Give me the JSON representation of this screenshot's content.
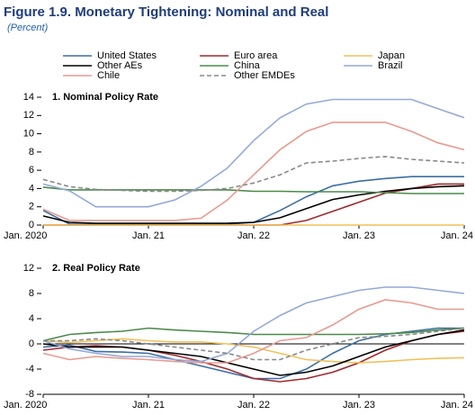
{
  "title": "Figure 1.9.  Monetary Tightening: Nominal and Real",
  "subtitle": "(Percent)",
  "chart_data": [
    {
      "type": "line",
      "title": "1. Nominal Policy Rate",
      "x": [
        2020,
        2020.25,
        2020.5,
        2020.75,
        2021,
        2021.25,
        2021.5,
        2021.75,
        2022,
        2022.25,
        2022.5,
        2022.75,
        2023,
        2023.25,
        2023.5,
        2023.75,
        2024
      ],
      "xlim": [
        2020,
        2024
      ],
      "xticks": [
        {
          "value": 2020,
          "label": "Jan. 2020"
        },
        {
          "value": 2021,
          "label": "Jan. 21"
        },
        {
          "value": 2022,
          "label": "Jan. 22"
        },
        {
          "value": 2023,
          "label": "Jan. 23"
        },
        {
          "value": 2024,
          "label": "Jan. 24"
        }
      ],
      "ylim": [
        0,
        14
      ],
      "yticks": [
        0,
        2,
        4,
        6,
        8,
        10,
        12,
        14
      ],
      "grid": false,
      "series": [
        {
          "name": "United States",
          "color": "#3a6ea5",
          "values": [
            1.6,
            0.1,
            0.1,
            0.1,
            0.1,
            0.1,
            0.1,
            0.1,
            0.3,
            1.6,
            3.1,
            4.3,
            4.8,
            5.1,
            5.3,
            5.3,
            5.3
          ]
        },
        {
          "name": "Euro area",
          "color": "#a0282d",
          "values": [
            0,
            0,
            0,
            0,
            0,
            0,
            0,
            0,
            0,
            0,
            0.5,
            1.5,
            2.5,
            3.5,
            4.0,
            4.5,
            4.5
          ]
        },
        {
          "name": "Japan",
          "color": "#f0c05a",
          "values": [
            0,
            0,
            0,
            0,
            0,
            0,
            0,
            0,
            0,
            0,
            0,
            0,
            0,
            0,
            0,
            0,
            0
          ]
        },
        {
          "name": "Other AEs",
          "color": "#000000",
          "values": [
            1.0,
            0.3,
            0.2,
            0.2,
            0.2,
            0.2,
            0.2,
            0.2,
            0.3,
            0.8,
            1.8,
            2.8,
            3.3,
            3.7,
            4.0,
            4.2,
            4.3
          ]
        },
        {
          "name": "China",
          "color": "#4a8a4a",
          "values": [
            4.15,
            3.85,
            3.85,
            3.85,
            3.85,
            3.85,
            3.85,
            3.85,
            3.7,
            3.7,
            3.65,
            3.65,
            3.65,
            3.55,
            3.45,
            3.45,
            3.45
          ]
        },
        {
          "name": "Brazil",
          "color": "#94a9d8",
          "values": [
            4.5,
            3.75,
            2.0,
            2.0,
            2.0,
            2.75,
            4.25,
            6.25,
            9.25,
            11.75,
            13.25,
            13.75,
            13.75,
            13.75,
            13.75,
            12.75,
            11.75
          ]
        },
        {
          "name": "Chile",
          "color": "#e89a8f",
          "values": [
            1.75,
            0.5,
            0.5,
            0.5,
            0.5,
            0.5,
            0.75,
            2.75,
            5.5,
            8.25,
            10.25,
            11.25,
            11.25,
            11.25,
            10.25,
            9.0,
            8.25
          ]
        },
        {
          "name": "Other EMDEs",
          "color": "#888888",
          "style": "dashed",
          "values": [
            5.0,
            4.2,
            3.9,
            3.8,
            3.7,
            3.7,
            3.8,
            4.0,
            4.6,
            5.5,
            6.8,
            7.0,
            7.3,
            7.5,
            7.2,
            7.0,
            6.8
          ]
        }
      ]
    },
    {
      "type": "line",
      "title": "2. Real Policy Rate",
      "x": [
        2020,
        2020.25,
        2020.5,
        2020.75,
        2021,
        2021.25,
        2021.5,
        2021.75,
        2022,
        2022.25,
        2022.5,
        2022.75,
        2023,
        2023.25,
        2023.5,
        2023.75,
        2024
      ],
      "xlim": [
        2020,
        2024
      ],
      "xticks": [
        {
          "value": 2020,
          "label": "Jan. 2020"
        },
        {
          "value": 2021,
          "label": "Jan. 21"
        },
        {
          "value": 2022,
          "label": "Jan. 22"
        },
        {
          "value": 2023,
          "label": "Jan. 23"
        },
        {
          "value": 2024,
          "label": "Jan. 24"
        }
      ],
      "ylim": [
        -8,
        12
      ],
      "yticks": [
        -8,
        -4,
        0,
        4,
        8,
        12
      ],
      "grid": false,
      "series": [
        {
          "color": "#3a6ea5",
          "values": [
            -0.5,
            -0.2,
            -1.2,
            -1.3,
            -1.5,
            -2.5,
            -3.5,
            -4.5,
            -5.5,
            -5.5,
            -4.0,
            -1.5,
            0.5,
            1.5,
            2.0,
            2.5,
            2.5
          ]
        },
        {
          "color": "#a0282d",
          "values": [
            -1.0,
            -0.5,
            -0.3,
            -0.5,
            -1.0,
            -1.8,
            -2.8,
            -4.0,
            -5.5,
            -6.0,
            -5.5,
            -4.5,
            -3.0,
            -1.0,
            0.5,
            1.5,
            2.0
          ]
        },
        {
          "color": "#f0c05a",
          "values": [
            0.5,
            0.2,
            0.5,
            0.8,
            0.5,
            0.3,
            0.3,
            0,
            -0.5,
            -1.5,
            -2.5,
            -2.8,
            -3.0,
            -2.8,
            -2.5,
            -2.3,
            -2.2
          ]
        },
        {
          "color": "#000000",
          "values": [
            0,
            -0.5,
            -0.5,
            -0.5,
            -1.0,
            -1.5,
            -2.0,
            -3.0,
            -4.0,
            -5.0,
            -4.5,
            -3.5,
            -2.0,
            -0.5,
            0.5,
            1.5,
            2.2
          ]
        },
        {
          "color": "#4a8a4a",
          "values": [
            0.5,
            1.5,
            1.8,
            2.0,
            2.5,
            2.2,
            2.0,
            1.8,
            1.5,
            1.5,
            1.5,
            1.5,
            1.5,
            1.6,
            1.8,
            2.2,
            2.5
          ]
        },
        {
          "color": "#94a9d8",
          "values": [
            0.5,
            -0.8,
            -1.5,
            -2.0,
            -2.0,
            -2.5,
            -2.8,
            -1.5,
            2.0,
            4.5,
            6.5,
            7.5,
            8.5,
            9.0,
            9.0,
            8.5,
            8.0
          ]
        },
        {
          "color": "#e89a8f",
          "values": [
            -1.5,
            -2.5,
            -2.0,
            -2.3,
            -2.5,
            -2.8,
            -3.0,
            -3.0,
            -1.5,
            0.5,
            1.0,
            3.0,
            5.5,
            7.0,
            6.5,
            5.5,
            5.5
          ]
        },
        {
          "color": "#888888",
          "style": "dashed",
          "values": [
            0.5,
            0.5,
            0.8,
            0.5,
            0.0,
            -0.5,
            -1.0,
            -1.5,
            -2.5,
            -2.5,
            -1.0,
            0.0,
            1.0,
            1.2,
            1.5,
            2.0,
            2.5
          ]
        }
      ]
    }
  ]
}
